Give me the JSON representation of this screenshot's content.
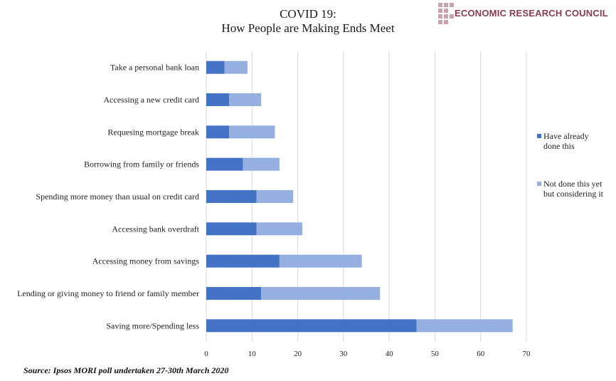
{
  "title_line1": "COVID 19:",
  "title_line2": "How People are Making Ends Meet",
  "logo_text": "ECONOMIC RESEARCH COUNCIL",
  "source": "Source: Ipsos MORI poll undertaken 27-30th March 2020",
  "colors": {
    "already": "#4472c4",
    "considering": "#94afe0",
    "grid": "#d9d9d9",
    "logo": "#8a3b52"
  },
  "legend": [
    {
      "line1": "Have already",
      "line2": "done this"
    },
    {
      "line1": "Not done this yet",
      "line2": "but considering it"
    }
  ],
  "chart_data": {
    "type": "bar",
    "orientation": "horizontal",
    "stacked": true,
    "title": "COVID 19: How People are Making Ends Meet",
    "categories": [
      "Take a personal bank loan",
      "Accessing a new credit card",
      "Requesing mortgage break",
      "Borrowing from family or friends",
      "Spending more money than usual on credit card",
      "Accessing bank overdraft",
      "Accessing money from savings",
      "Lending or giving money to friend or family member",
      "Saving more/Spending less"
    ],
    "series": [
      {
        "name": "Have already done this",
        "values": [
          4,
          5,
          5,
          8,
          11,
          11,
          16,
          12,
          46
        ]
      },
      {
        "name": "Not done this yet but considering it",
        "values": [
          5,
          7,
          10,
          8,
          8,
          10,
          18,
          26,
          21
        ]
      }
    ],
    "xlim": [
      0,
      70
    ],
    "xticks": [
      0,
      10,
      20,
      30,
      40,
      50,
      60,
      70
    ],
    "grid": true,
    "legend_position": "right"
  }
}
